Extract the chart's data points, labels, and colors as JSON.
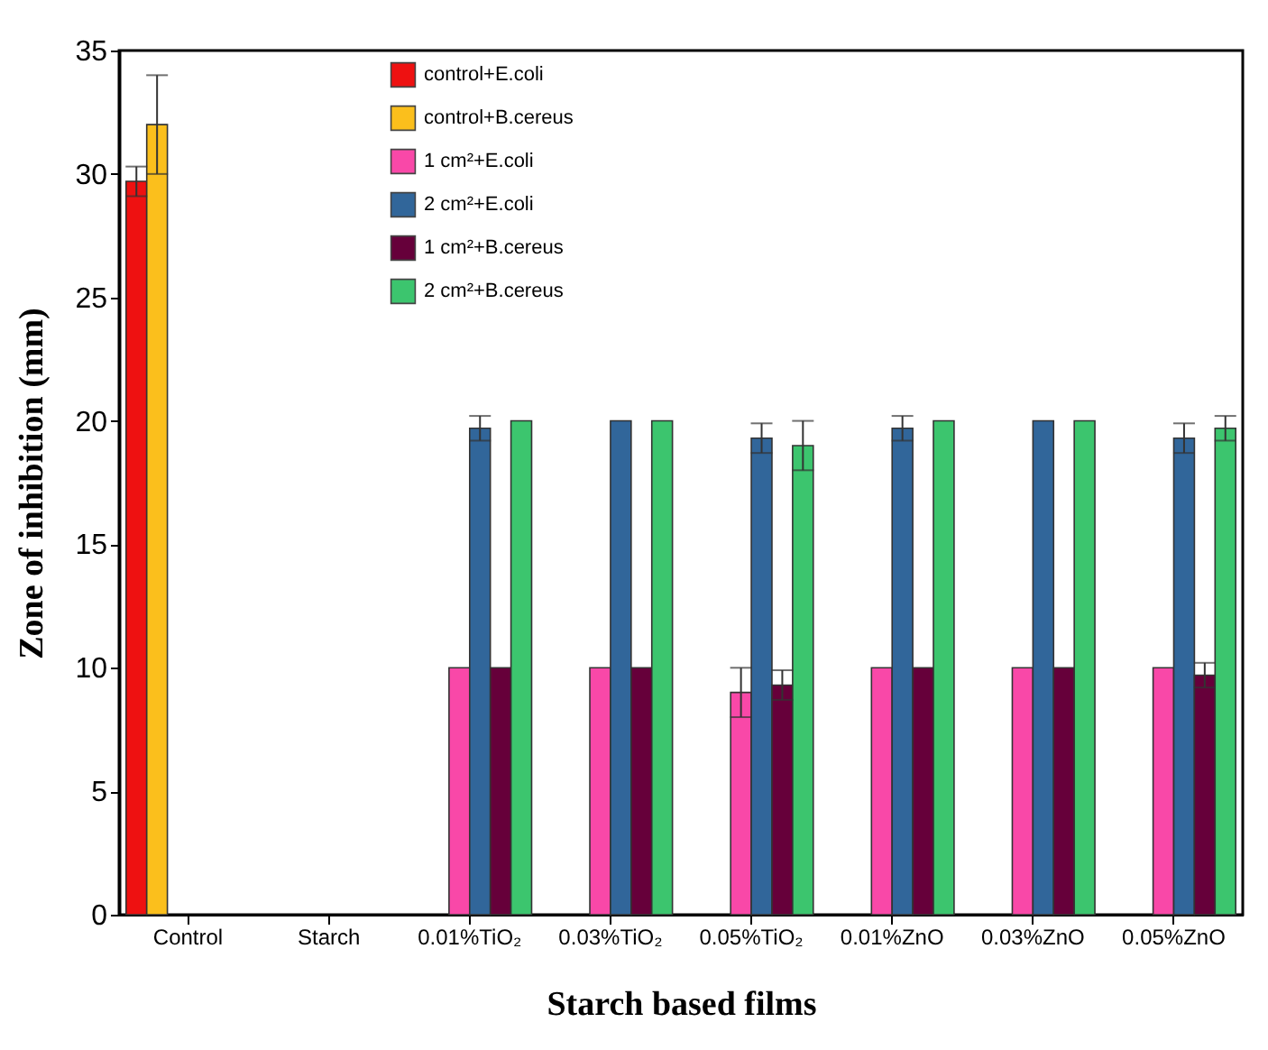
{
  "chart_data": {
    "type": "bar",
    "xlabel": "Starch based films",
    "ylabel": "Zone of inhibition (mm)",
    "categories": [
      "Control",
      "Starch",
      "0.01%TiO₂",
      "0.03%TiO₂",
      "0.05%TiO₂",
      "0.01%ZnO",
      "0.03%ZnO",
      "0.05%ZnO"
    ],
    "series": [
      {
        "name": "control+E.coli",
        "color": "#ee1111",
        "values": [
          29.7,
          null,
          null,
          null,
          null,
          null,
          null,
          null
        ],
        "errors": [
          0.6,
          null,
          null,
          null,
          null,
          null,
          null,
          null
        ]
      },
      {
        "name": "control+B.cereus",
        "color": "#fbbf1c",
        "values": [
          32,
          null,
          null,
          null,
          null,
          null,
          null,
          null
        ],
        "errors": [
          2,
          null,
          null,
          null,
          null,
          null,
          null,
          null
        ]
      },
      {
        "name": "1 cm²+E.coli",
        "color": "#f948a8",
        "values": [
          null,
          null,
          10,
          10,
          9,
          10,
          10,
          10
        ],
        "errors": [
          null,
          null,
          null,
          null,
          1,
          null,
          null,
          null
        ]
      },
      {
        "name": "2 cm²+E.coli",
        "color": "#31669a",
        "values": [
          null,
          null,
          19.7,
          20,
          19.3,
          19.7,
          20,
          19.3
        ],
        "errors": [
          null,
          null,
          0.5,
          null,
          0.6,
          0.5,
          null,
          0.6
        ]
      },
      {
        "name": "1 cm²+B.cereus",
        "color": "#66003a",
        "values": [
          null,
          null,
          10,
          10,
          9.3,
          10,
          10,
          9.7
        ],
        "errors": [
          null,
          null,
          null,
          null,
          0.6,
          null,
          null,
          0.5
        ]
      },
      {
        "name": "2 cm²+B.cereus",
        "color": "#3cc56e",
        "values": [
          null,
          null,
          20,
          20,
          19,
          20,
          20,
          19.7
        ],
        "errors": [
          null,
          null,
          null,
          null,
          1,
          null,
          null,
          0.5
        ]
      }
    ],
    "ylim": [
      0,
      35
    ],
    "yticks": [
      0,
      5,
      10,
      15,
      20,
      25,
      30,
      35
    ],
    "grid": false,
    "legend": "top"
  }
}
